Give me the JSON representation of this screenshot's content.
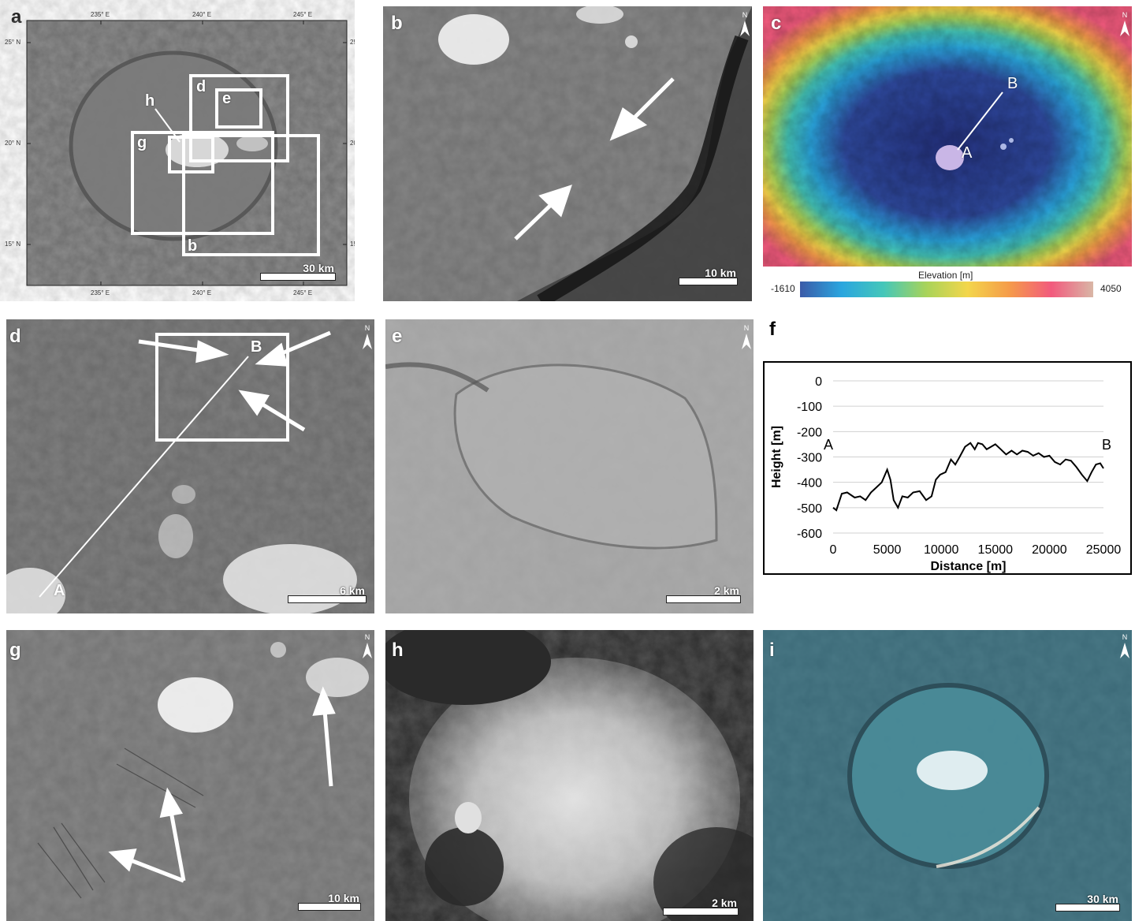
{
  "panels": {
    "a": {
      "label": "a",
      "lon_ticks": [
        "235° E",
        "240° E",
        "245° E"
      ],
      "lat_ticks": [
        "25° N",
        "20° N",
        "15° N"
      ],
      "boxes": [
        "d",
        "e",
        "h",
        "g",
        "b"
      ],
      "scale": "30 km"
    },
    "b": {
      "label": "b",
      "scale": "10 km",
      "north": "N"
    },
    "c": {
      "label": "c",
      "north": "N",
      "point_a": "A",
      "point_b": "B",
      "colorbar_title": "Elevation [m]",
      "colorbar_min": "-1610",
      "colorbar_max": "4050",
      "colorbar_colors": [
        "#3b5ba8",
        "#2aa6df",
        "#45c7b9",
        "#a7d35a",
        "#f3d64b",
        "#f59b4a",
        "#f25a7d",
        "#d9b6a6"
      ]
    },
    "d": {
      "label": "d",
      "north": "N",
      "point_a": "A",
      "point_b": "B",
      "scale": "6 km"
    },
    "e": {
      "label": "e",
      "north": "N",
      "scale": "2 km"
    },
    "f": {
      "label": "f"
    },
    "g": {
      "label": "g",
      "north": "N",
      "scale": "10 km"
    },
    "h": {
      "label": "h",
      "scale": "2 km"
    },
    "i": {
      "label": "i",
      "north": "N",
      "scale": "30 km"
    }
  },
  "chart_data": {
    "type": "line",
    "xlabel": "Distance [m]",
    "ylabel": "Height [m]",
    "xlim": [
      0,
      25000
    ],
    "ylim": [
      -600,
      0
    ],
    "xticks": [
      "0",
      "5000",
      "10000",
      "15000",
      "20000",
      "25000"
    ],
    "yticks": [
      "0",
      "-100",
      "-200",
      "-300",
      "-400",
      "-500",
      "-600"
    ],
    "grid": true,
    "start_label": "A",
    "end_label": "B",
    "series": [
      {
        "color": "#000000",
        "x": [
          0,
          300,
          800,
          1300,
          2000,
          2500,
          3000,
          3500,
          4000,
          4500,
          5000,
          5300,
          5600,
          6000,
          6400,
          6900,
          7400,
          8000,
          8600,
          9100,
          9500,
          9900,
          10400,
          10900,
          11300,
          11700,
          12200,
          12700,
          13100,
          13400,
          13800,
          14200,
          14600,
          15000,
          15500,
          16000,
          16500,
          17000,
          17500,
          18000,
          18500,
          19000,
          19500,
          20000,
          20500,
          21000,
          21500,
          22000,
          22500,
          23000,
          23500,
          23900,
          24300,
          24700,
          25000
        ],
        "y": [
          -500,
          -510,
          -445,
          -440,
          -460,
          -455,
          -470,
          -440,
          -420,
          -400,
          -350,
          -390,
          -470,
          -500,
          -455,
          -460,
          -440,
          -435,
          -470,
          -455,
          -390,
          -370,
          -360,
          -310,
          -330,
          -300,
          -260,
          -245,
          -270,
          -245,
          -250,
          -270,
          -260,
          -250,
          -270,
          -290,
          -275,
          -290,
          -275,
          -280,
          -295,
          -285,
          -300,
          -295,
          -320,
          -330,
          -310,
          -315,
          -340,
          -370,
          -395,
          -360,
          -330,
          -325,
          -345
        ]
      }
    ]
  }
}
